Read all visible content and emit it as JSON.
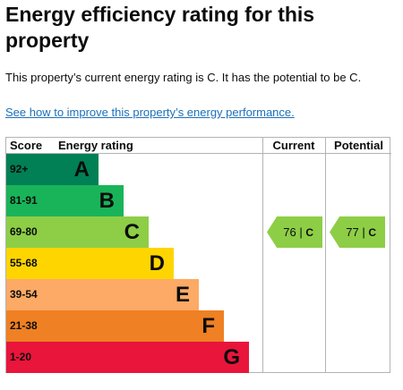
{
  "page": {
    "title": "Energy efficiency rating for this property",
    "summary": "This property’s current energy rating is C. It has the potential to be C.",
    "link_text": "See how to improve this property’s energy performance."
  },
  "chart_data": {
    "type": "bar",
    "headers": {
      "score": "Score",
      "rating": "Energy rating",
      "current": "Current",
      "potential": "Potential"
    },
    "bands": [
      {
        "score": "92+",
        "letter": "A",
        "color": "#008054",
        "text_color": "#0b0c0c"
      },
      {
        "score": "81-91",
        "letter": "B",
        "color": "#19b459",
        "text_color": "#0b0c0c"
      },
      {
        "score": "69-80",
        "letter": "C",
        "color": "#8dce46",
        "text_color": "#0b0c0c"
      },
      {
        "score": "55-68",
        "letter": "D",
        "color": "#ffd500",
        "text_color": "#0b0c0c"
      },
      {
        "score": "39-54",
        "letter": "E",
        "color": "#fcaa65",
        "text_color": "#0b0c0c"
      },
      {
        "score": "21-38",
        "letter": "F",
        "color": "#ef8023",
        "text_color": "#0b0c0c"
      },
      {
        "score": "1-20",
        "letter": "G",
        "color": "#e9153b",
        "text_color": "#0b0c0c"
      }
    ],
    "current": {
      "value": 76,
      "letter": "C",
      "text": "76 |",
      "color": "#8dce46"
    },
    "potential": {
      "value": 77,
      "letter": "C",
      "text": "77 |",
      "color": "#8dce46"
    }
  }
}
